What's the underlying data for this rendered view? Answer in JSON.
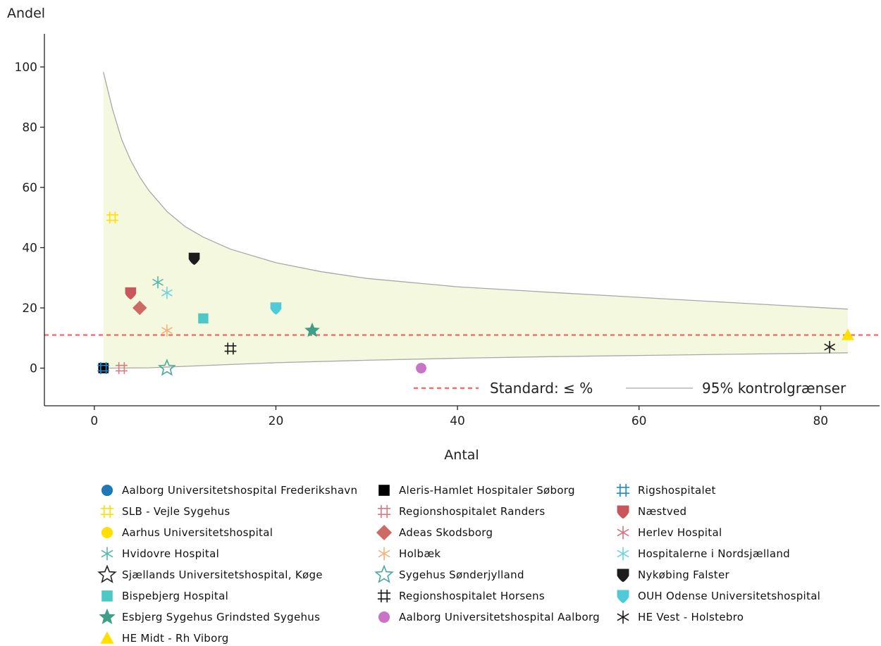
{
  "chart_data": {
    "type": "scatter",
    "ylabel": "Andel",
    "xlabel": "Antal",
    "xlim": [
      -5.5,
      86.5
    ],
    "ylim": [
      -12.5,
      111
    ],
    "x_ticks": [
      0,
      20,
      40,
      60,
      80
    ],
    "y_ticks": [
      0,
      20,
      40,
      60,
      80,
      100
    ],
    "grid": false,
    "standard": {
      "label": "Standard: ≤  %",
      "value": 11,
      "color": "#ef6f6c"
    },
    "control_limits": {
      "label": "95% kontrolgrænser",
      "color": "#a8a8a8",
      "fill": "#f4f8df",
      "upper": [
        [
          1,
          98.3
        ],
        [
          2,
          86
        ],
        [
          3,
          76
        ],
        [
          4,
          69
        ],
        [
          5,
          63.5
        ],
        [
          6,
          59
        ],
        [
          8,
          52
        ],
        [
          10,
          47
        ],
        [
          12,
          43.5
        ],
        [
          15,
          39.5
        ],
        [
          20,
          35
        ],
        [
          25,
          32
        ],
        [
          30,
          29.8
        ],
        [
          40,
          27
        ],
        [
          50,
          25.2
        ],
        [
          60,
          23.5
        ],
        [
          70,
          21.8
        ],
        [
          83,
          19.6
        ]
      ],
      "lower": [
        [
          1,
          0
        ],
        [
          6,
          0.1
        ],
        [
          10,
          0.6
        ],
        [
          15,
          1.2
        ],
        [
          20,
          1.8
        ],
        [
          30,
          2.6
        ],
        [
          40,
          3.3
        ],
        [
          50,
          3.8
        ],
        [
          60,
          4.2
        ],
        [
          70,
          4.6
        ],
        [
          83,
          5.1
        ]
      ]
    },
    "series": [
      {
        "name": "Aalborg Universitetshospital Frederikshavn",
        "marker": "circle",
        "color": "#1f77b4",
        "points": [
          [
            1,
            0
          ]
        ]
      },
      {
        "name": "Aleris-Hamlet Hospitaler Søborg",
        "marker": "square",
        "color": "#000000",
        "points": [
          [
            1,
            0
          ]
        ]
      },
      {
        "name": "Rigshospitalet",
        "marker": "hash",
        "color": "#1f8ad0",
        "points": [
          [
            1,
            0
          ]
        ]
      },
      {
        "name": "SLB - Vejle Sygehus",
        "marker": "hash",
        "color": "#ffe000",
        "points": [
          [
            2,
            50
          ]
        ]
      },
      {
        "name": "Regionshospitalet Randers",
        "marker": "hash",
        "color": "#d97a82",
        "points": [
          [
            3,
            0
          ]
        ]
      },
      {
        "name": "Næstved",
        "marker": "shield",
        "color": "#c8565b",
        "points": [
          [
            4,
            25
          ]
        ]
      },
      {
        "name": "Aarhus Universitetshospital",
        "marker": "circle",
        "color": "#ffe000",
        "points": []
      },
      {
        "name": "Adeas Skodsborg",
        "marker": "diamond",
        "color": "#cd6a62",
        "points": [
          [
            5,
            20
          ]
        ]
      },
      {
        "name": "Herlev Hospital",
        "marker": "asterisk",
        "color": "#d9717c",
        "points": []
      },
      {
        "name": "Hvidovre Hospital",
        "marker": "asterisk",
        "color": "#55b8a8",
        "points": [
          [
            7,
            28.5
          ]
        ]
      },
      {
        "name": "Holbæk",
        "marker": "asterisk",
        "color": "#f4b27a",
        "points": [
          [
            8,
            12.5
          ]
        ]
      },
      {
        "name": "Hospitalerne i Nordsjælland",
        "marker": "asterisk",
        "color": "#6fd3dc",
        "points": [
          [
            8,
            25
          ]
        ]
      },
      {
        "name": "Sjællands Universitetshospital, Køge",
        "marker": "star-open",
        "color": "#222222",
        "points": []
      },
      {
        "name": "Sygehus Sønderjylland",
        "marker": "star-open",
        "color": "#4aa89a",
        "points": [
          [
            8,
            0
          ]
        ]
      },
      {
        "name": "Nykøbing Falster",
        "marker": "shield",
        "color": "#1c1c1c",
        "points": [
          [
            11,
            36.5
          ]
        ]
      },
      {
        "name": "Bispebjerg Hospital",
        "marker": "square",
        "color": "#4ec8c4",
        "points": [
          [
            12,
            16.5
          ]
        ]
      },
      {
        "name": "Regionshospitalet Horsens",
        "marker": "hash",
        "color": "#1c1c1c",
        "points": [
          [
            15,
            6.5
          ]
        ]
      },
      {
        "name": "OUH Odense Universitetshospital",
        "marker": "shield",
        "color": "#4fcad8",
        "points": [
          [
            20,
            20
          ]
        ]
      },
      {
        "name": "Esbjerg Sygehus Grindsted Sygehus",
        "marker": "star",
        "color": "#3f9e87",
        "points": [
          [
            24,
            12.5
          ]
        ]
      },
      {
        "name": "Aalborg Universitetshospital Aalborg",
        "marker": "circle",
        "color": "#c774c7",
        "points": [
          [
            36,
            0
          ]
        ]
      },
      {
        "name": "HE Vest - Holstebro",
        "marker": "asterisk",
        "color": "#1c1c1c",
        "points": [
          [
            81,
            7
          ]
        ]
      },
      {
        "name": "HE Midt - Rh Viborg",
        "marker": "triangle",
        "color": "#ffe000",
        "points": [
          [
            83,
            11
          ]
        ]
      }
    ]
  }
}
